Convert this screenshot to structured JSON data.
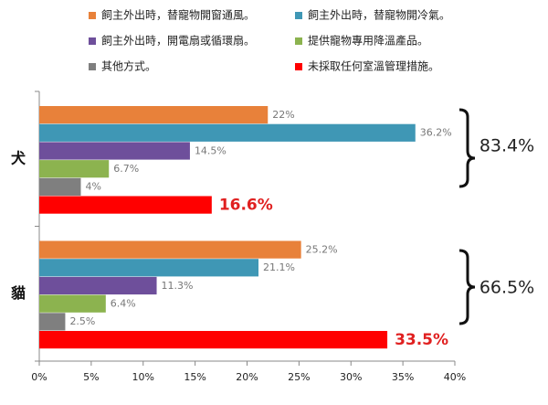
{
  "chart_data": {
    "type": "bar",
    "orientation": "horizontal",
    "categories": [
      "犬",
      "貓"
    ],
    "series": [
      {
        "name": "飼主外出時，替寵物開窗通風。",
        "color": "#e8813a",
        "values": [
          22,
          25.2
        ],
        "value_labels": [
          "22%",
          "25.2%"
        ]
      },
      {
        "name": "飼主外出時，替寵物開冷氣。",
        "color": "#3f97b5",
        "values": [
          36.2,
          21.1
        ],
        "value_labels": [
          "36.2%",
          "21.1%"
        ]
      },
      {
        "name": "飼主外出時，開電扇或循環扇。",
        "color": "#6e4f9b",
        "values": [
          14.5,
          11.3
        ],
        "value_labels": [
          "14.5%",
          "11.3%"
        ]
      },
      {
        "name": "提供寵物專用降溫產品。",
        "color": "#8cb34f",
        "values": [
          6.7,
          6.4
        ],
        "value_labels": [
          "6.7%",
          "6.4%"
        ]
      },
      {
        "name": "其他方式。",
        "color": "#7f7f7f",
        "values": [
          4,
          2.5
        ],
        "value_labels": [
          "4%",
          "2.5%"
        ]
      },
      {
        "name": "未採取任何室溫管理措施。",
        "color": "#ff0000",
        "values": [
          16.6,
          33.5
        ],
        "value_labels": [
          "16.6%",
          "33.5%"
        ]
      }
    ],
    "xlim": [
      0,
      40
    ],
    "xticks": [
      {
        "value": 0,
        "label": "0%"
      },
      {
        "value": 5,
        "label": "5%"
      },
      {
        "value": 10,
        "label": "10%"
      },
      {
        "value": 15,
        "label": "15%"
      },
      {
        "value": 20,
        "label": "20%"
      },
      {
        "value": 25,
        "label": "25%"
      },
      {
        "value": 30,
        "label": "30%"
      },
      {
        "value": 35,
        "label": "35%"
      },
      {
        "value": 40,
        "label": "40%"
      }
    ],
    "annotations": [
      {
        "text": "83.4%"
      },
      {
        "text": "66.5%"
      }
    ],
    "legend": "top"
  }
}
